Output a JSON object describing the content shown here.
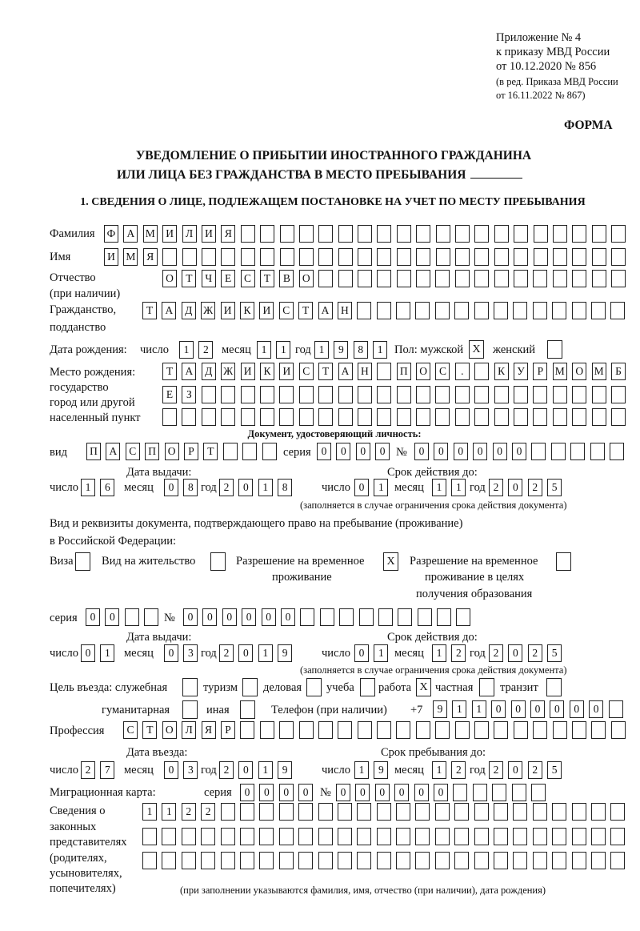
{
  "header": {
    "appendix": "Приложение № 4",
    "order": "к приказу МВД России",
    "order_date": "от 10.12.2020 № 856",
    "edition_1": "(в ред. Приказа МВД России",
    "edition_2": "от 16.11.2022 № 867)",
    "form_label": "ФОРМА"
  },
  "title": {
    "line1": "УВЕДОМЛЕНИЕ О ПРИБЫТИИ ИНОСТРАННОГО ГРАЖДАНИНА",
    "line2": "ИЛИ ЛИЦА БЕЗ ГРАЖДАНСТВА В МЕСТО ПРЕБЫВАНИЯ"
  },
  "section1": {
    "heading": "1. СВЕДЕНИЯ О ЛИЦЕ, ПОДЛЕЖАЩЕМ ПОСТАНОВКЕ НА УЧЕТ ПО МЕСТУ ПРЕБЫВАНИЯ"
  },
  "labels": {
    "surname": "Фамилия",
    "name": "Имя",
    "patronymic": "Отчество",
    "patronymic_note": "(при наличии)",
    "citizenship_1": "Гражданство,",
    "citizenship_2": "подданство",
    "birth_date": "Дата рождения:",
    "day": "число",
    "month": "месяц",
    "year": "год",
    "sex": "Пол: мужской",
    "female": "женский",
    "birthplace_1": "Место рождения:",
    "birthplace_2": "государство",
    "birthplace_3": "город или другой",
    "birthplace_4": "населенный пункт",
    "id_doc_heading": "Документ, удостоверяющий личность:",
    "kind": "вид",
    "series": "серия",
    "number": "№",
    "issue_date": "Дата выдачи:",
    "valid_until": "Срок действия до:",
    "validity_note": "(заполняется в случае ограничения срока действия документа)",
    "stay_doc_1": "Вид и реквизиты документа, подтверждающего право на пребывание (проживание)",
    "stay_doc_2": "в Российской Федерации:",
    "visa": "Виза",
    "residence_permit": "Вид на жительство",
    "temp_residence_1": "Разрешение на временное",
    "temp_residence_2": "проживание",
    "temp_edu_1": "Разрешение на временное",
    "temp_edu_2": "проживание в целях",
    "temp_edu_3": "получения образования",
    "purpose": "Цель въезда: служебная",
    "tourism": "туризм",
    "business": "деловая",
    "study": "учеба",
    "work": "работа",
    "private": "частная",
    "transit": "транзит",
    "humanitarian": "гуманитарная",
    "other": "иная",
    "phone": "Телефон (при наличии)",
    "phone_prefix": "+7",
    "profession": "Профессия",
    "entry_date": "Дата въезда:",
    "stay_until": "Срок пребывания до:",
    "migration_card": "Миграционная карта:",
    "reps_1": "Сведения о",
    "reps_2": "законных",
    "reps_3": "представителях",
    "reps_4": "(родителях,",
    "reps_5": "усыновителях,",
    "reps_6": "попечителях)",
    "reps_note": "(при заполнении указываются фамилия, имя, отчество (при наличии), дата рождения)"
  },
  "person": {
    "surname": "ФАМИЛИЯ",
    "name": "ИМЯ",
    "patronymic": "ОТЧЕСТВО",
    "citizenship": "ТАДЖИКИСТАН",
    "birth": {
      "day": "12",
      "month": "11",
      "year": "1981"
    },
    "sex_male": "X",
    "sex_female": "",
    "birthplace_1": "ТАДЖИКИСТАН ПОС. КУРМОМБ",
    "birthplace_2": "ЕЗ",
    "birthplace_3": "",
    "id_doc": {
      "kind": "ПАСПОРТ",
      "series": "0000",
      "number": "000000",
      "issued": {
        "day": "16",
        "month": "08",
        "year": "2018"
      },
      "valid": {
        "day": "01",
        "month": "11",
        "year": "2025"
      }
    },
    "stay_doc": {
      "visa": "",
      "residence_permit": "",
      "temp_residence": "X",
      "temp_edu": "",
      "series": "00",
      "number": "000000",
      "issued": {
        "day": "01",
        "month": "03",
        "year": "2019"
      },
      "valid": {
        "day": "01",
        "month": "12",
        "year": "2025"
      }
    },
    "purpose": {
      "official": "",
      "tourism": "",
      "business": "",
      "study": "",
      "work": "X",
      "private": "",
      "transit": "",
      "humanitarian": "",
      "other": ""
    },
    "phone": "911000000",
    "profession": "СТОЛЯР",
    "entry": {
      "day": "27",
      "month": "03",
      "year": "2019"
    },
    "stay_until": {
      "day": "19",
      "month": "12",
      "year": "2025"
    },
    "migration_card": {
      "series": "0000",
      "number": "000000"
    },
    "reps_1": "1122",
    "reps_2": "",
    "reps_3": ""
  }
}
